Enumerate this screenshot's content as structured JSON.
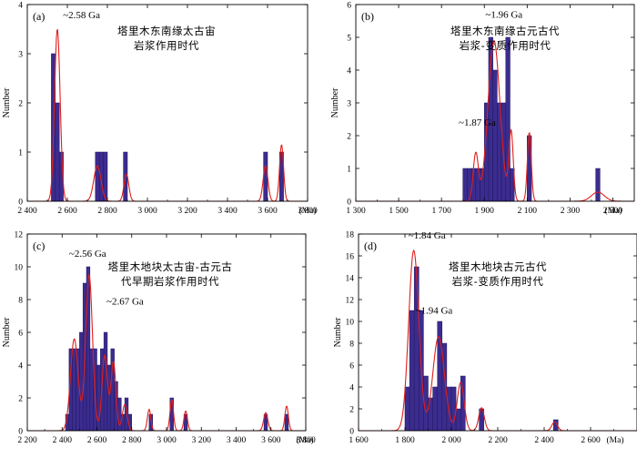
{
  "chart_data": [
    {
      "panel_label": "(a)",
      "type": "bar",
      "title_lines": [
        "塔里木东南缘太古宙",
        "岩浆作用时代"
      ],
      "xlabel": "(Ma)",
      "ylabel": "Number",
      "xlim": [
        2400,
        3800
      ],
      "ylim": [
        0,
        4
      ],
      "x_ticks": [
        2400,
        2600,
        2800,
        3000,
        3200,
        3400,
        3600,
        3800
      ],
      "x_tick_labels": [
        "2 400",
        "2 600",
        "2 800",
        "3 000",
        "3 200",
        "3 400",
        "3 600",
        "3 800"
      ],
      "y_ticks": [
        0,
        1,
        2,
        3,
        4
      ],
      "bin_width": 20,
      "bins": [
        {
          "x": 2520,
          "v": 3
        },
        {
          "x": 2540,
          "v": 2
        },
        {
          "x": 2560,
          "v": 1
        },
        {
          "x": 2740,
          "v": 1
        },
        {
          "x": 2760,
          "v": 1
        },
        {
          "x": 2780,
          "v": 1
        },
        {
          "x": 2880,
          "v": 1
        },
        {
          "x": 3580,
          "v": 1
        },
        {
          "x": 3660,
          "v": 1
        }
      ],
      "curve": {
        "scale": 1,
        "peaks": [
          [
            2550,
            3.5,
            14
          ],
          [
            2750,
            0.72,
            18
          ],
          [
            2895,
            0.55,
            12
          ],
          [
            3590,
            0.72,
            12
          ],
          [
            3670,
            1.15,
            10
          ]
        ]
      },
      "annotations": [
        {
          "text": "~2.58 Ga",
          "x": 2578,
          "y": 3.72
        }
      ]
    },
    {
      "panel_label": "(b)",
      "type": "bar",
      "title_lines": [
        "塔里木东南缘古元古代",
        "岩浆-变质作用时代"
      ],
      "xlabel": "(Ma)",
      "ylabel": "Number",
      "xlim": [
        1300,
        2600
      ],
      "ylim": [
        0,
        6
      ],
      "x_ticks": [
        1300,
        1500,
        1700,
        1900,
        2100,
        2300,
        2500
      ],
      "x_tick_labels": [
        "1 300",
        "1 500",
        "1 700",
        "1 900",
        "2 100",
        "2 300",
        "2 500"
      ],
      "y_ticks": [
        0,
        1,
        2,
        3,
        4,
        5,
        6
      ],
      "bin_width": 20,
      "bins": [
        {
          "x": 1800,
          "v": 1
        },
        {
          "x": 1820,
          "v": 1
        },
        {
          "x": 1840,
          "v": 1
        },
        {
          "x": 1860,
          "v": 1
        },
        {
          "x": 1880,
          "v": 1
        },
        {
          "x": 1900,
          "v": 3
        },
        {
          "x": 1920,
          "v": 5
        },
        {
          "x": 1940,
          "v": 4
        },
        {
          "x": 1960,
          "v": 3
        },
        {
          "x": 1980,
          "v": 3
        },
        {
          "x": 2000,
          "v": 5
        },
        {
          "x": 2020,
          "v": 1
        },
        {
          "x": 2100,
          "v": 2
        },
        {
          "x": 2420,
          "v": 1
        }
      ],
      "curve": {
        "scale": 1,
        "peaks": [
          [
            1860,
            1.45,
            12
          ],
          [
            1945,
            4.9,
            28
          ],
          [
            2025,
            2.1,
            10
          ],
          [
            2110,
            2.1,
            9
          ],
          [
            2430,
            0.28,
            30
          ]
        ]
      },
      "annotations": [
        {
          "text": "~1.96 Ga",
          "x": 1905,
          "y": 5.6
        },
        {
          "text": "~1.87 Ga",
          "x": 1780,
          "y": 2.3
        }
      ]
    },
    {
      "panel_label": "(c)",
      "type": "bar",
      "title_lines": [
        "塔里木地块太古宙-古元古",
        "代早期岩浆作用时代"
      ],
      "xlabel": "(Ma)",
      "ylabel": "Number",
      "xlim": [
        2200,
        3800
      ],
      "ylim": [
        0,
        12
      ],
      "x_ticks": [
        2200,
        2400,
        2600,
        2800,
        3000,
        3200,
        3400,
        3600,
        3800
      ],
      "x_tick_labels": [
        "2 200",
        "2 400",
        "2 600",
        "2 800",
        "3 000",
        "3 200",
        "3 400",
        "3 600",
        "3 800"
      ],
      "y_ticks": [
        0,
        2,
        4,
        6,
        8,
        10,
        12
      ],
      "bin_width": 20,
      "bins": [
        {
          "x": 2420,
          "v": 1
        },
        {
          "x": 2440,
          "v": 5
        },
        {
          "x": 2460,
          "v": 5
        },
        {
          "x": 2480,
          "v": 5
        },
        {
          "x": 2500,
          "v": 6
        },
        {
          "x": 2520,
          "v": 9
        },
        {
          "x": 2540,
          "v": 10
        },
        {
          "x": 2560,
          "v": 5
        },
        {
          "x": 2580,
          "v": 5
        },
        {
          "x": 2600,
          "v": 4
        },
        {
          "x": 2620,
          "v": 5
        },
        {
          "x": 2640,
          "v": 6
        },
        {
          "x": 2660,
          "v": 4
        },
        {
          "x": 2680,
          "v": 5
        },
        {
          "x": 2700,
          "v": 3
        },
        {
          "x": 2720,
          "v": 2
        },
        {
          "x": 2740,
          "v": 1
        },
        {
          "x": 2760,
          "v": 2
        },
        {
          "x": 2780,
          "v": 1
        },
        {
          "x": 2900,
          "v": 1
        },
        {
          "x": 3020,
          "v": 2
        },
        {
          "x": 3100,
          "v": 1
        },
        {
          "x": 3560,
          "v": 1
        },
        {
          "x": 3680,
          "v": 1
        }
      ],
      "curve": {
        "scale": 1,
        "peaks": [
          [
            2470,
            5.6,
            22
          ],
          [
            2555,
            9.5,
            20
          ],
          [
            2645,
            4.6,
            16
          ],
          [
            2695,
            4.2,
            14
          ],
          [
            2760,
            1.6,
            14
          ],
          [
            2900,
            1.3,
            10
          ],
          [
            3030,
            1.9,
            10
          ],
          [
            3110,
            1.2,
            10
          ],
          [
            3570,
            1.1,
            12
          ],
          [
            3690,
            1.5,
            10
          ]
        ]
      },
      "annotations": [
        {
          "text": "~2.56 Ga",
          "x": 2440,
          "y": 10.6
        },
        {
          "text": "~2.67 Ga",
          "x": 2655,
          "y": 7.7
        }
      ]
    },
    {
      "panel_label": "(d)",
      "type": "bar",
      "title_lines": [
        "塔里木地块古元古代",
        "岩浆-变质作用时代"
      ],
      "xlabel": "(Ma)",
      "ylabel": "Number",
      "xlim": [
        1600,
        2800
      ],
      "ylim": [
        0,
        18
      ],
      "x_ticks": [
        1600,
        1800,
        2000,
        2200,
        2400,
        2600
      ],
      "x_tick_labels": [
        "1 600",
        "1 800",
        "2 000",
        "2 200",
        "2 400",
        "2 600"
      ],
      "y_ticks": [
        0,
        2,
        4,
        6,
        8,
        10,
        12,
        14,
        16,
        18
      ],
      "bin_width": 20,
      "bins": [
        {
          "x": 1800,
          "v": 4
        },
        {
          "x": 1820,
          "v": 11
        },
        {
          "x": 1840,
          "v": 15
        },
        {
          "x": 1860,
          "v": 11
        },
        {
          "x": 1880,
          "v": 5
        },
        {
          "x": 1900,
          "v": 3
        },
        {
          "x": 1920,
          "v": 4
        },
        {
          "x": 1940,
          "v": 10
        },
        {
          "x": 1960,
          "v": 8
        },
        {
          "x": 1980,
          "v": 4
        },
        {
          "x": 2000,
          "v": 4
        },
        {
          "x": 2020,
          "v": 2
        },
        {
          "x": 2040,
          "v": 5
        },
        {
          "x": 2120,
          "v": 2
        },
        {
          "x": 2440,
          "v": 1
        }
      ],
      "curve": {
        "scale": 1,
        "peaks": [
          [
            1838,
            16.5,
            22
          ],
          [
            1945,
            8.6,
            25
          ],
          [
            2040,
            4.4,
            15
          ],
          [
            2130,
            2.1,
            12
          ],
          [
            2445,
            0.8,
            12
          ]
        ]
      },
      "annotations": [
        {
          "text": "~1.84 Ga",
          "x": 1815,
          "y": 17.6
        },
        {
          "text": "~1.94 Ga",
          "x": 1845,
          "y": 10.7
        }
      ]
    }
  ],
  "colors": {
    "bar_fill": "#3b2c8e",
    "bar_stroke": "#1f1760",
    "curve": "#e0201c",
    "axis": "#000000"
  }
}
